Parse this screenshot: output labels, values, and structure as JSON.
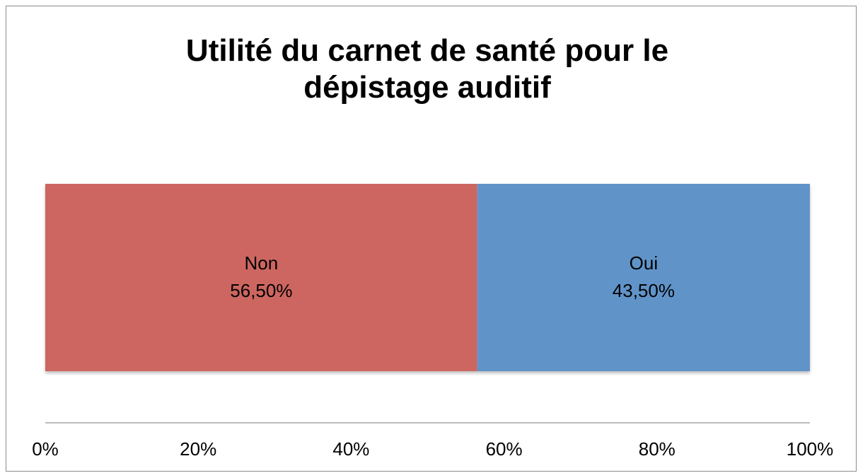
{
  "chart_data": {
    "type": "stacked_bar_horizontal",
    "title": "Utilité du carnet de santé pour le dépistage auditif",
    "series": [
      {
        "name": "Non",
        "color": "#cd6660",
        "values": [
          56.5
        ],
        "value_labels": [
          "56,50%"
        ]
      },
      {
        "name": "Oui",
        "color": "#6094c9",
        "values": [
          43.5
        ],
        "value_labels": [
          "43,50%"
        ]
      }
    ],
    "xlim": [
      0,
      100
    ],
    "xticks": [
      {
        "value": 0,
        "label": "0%"
      },
      {
        "value": 20,
        "label": "20%"
      },
      {
        "value": 40,
        "label": "40%"
      },
      {
        "value": 60,
        "label": "60%"
      },
      {
        "value": 80,
        "label": "80%"
      },
      {
        "value": 100,
        "label": "100%"
      }
    ]
  }
}
